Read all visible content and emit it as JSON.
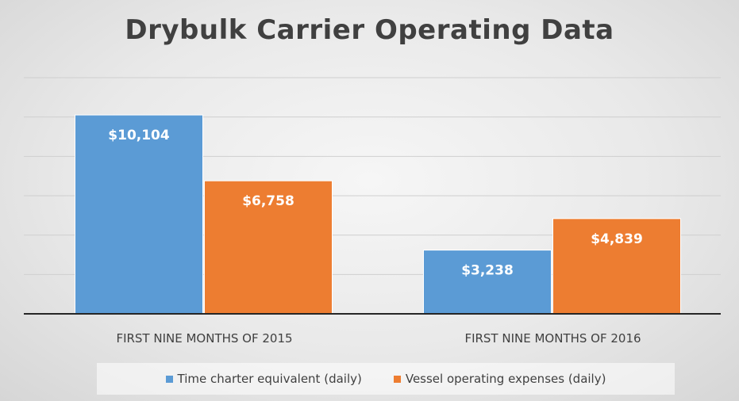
{
  "chart_data": {
    "type": "bar",
    "title": "Drybulk Carrier Operating Data",
    "categories": [
      "FIRST NINE MONTHS OF 2015",
      "FIRST NINE MONTHS OF 2016"
    ],
    "series": [
      {
        "name": "Time charter equivalent (daily)",
        "color": "#5b9bd5",
        "values": [
          10104,
          3238
        ],
        "labels": [
          "$10,104",
          "$3,238"
        ]
      },
      {
        "name": "Vessel operating expenses (daily)",
        "color": "#ed7d31",
        "values": [
          6758,
          4839
        ],
        "labels": [
          "$6,758",
          "$4,839"
        ]
      }
    ],
    "ylim": [
      0,
      12000
    ],
    "gridlines": true,
    "legend_position": "bottom"
  }
}
